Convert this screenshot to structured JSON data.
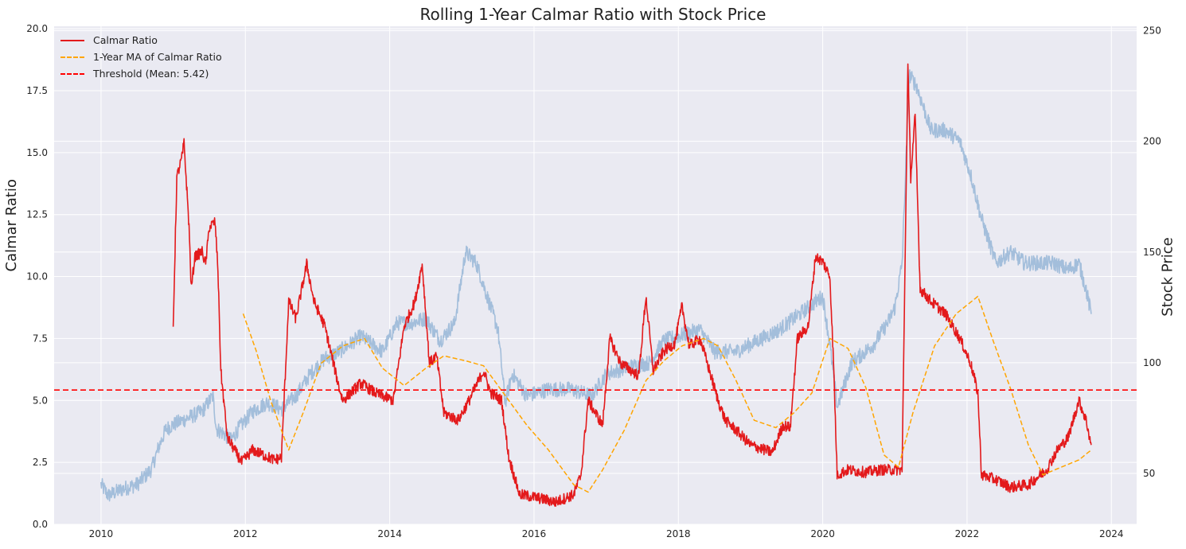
{
  "chart_data": {
    "type": "line",
    "title": "Rolling 1-Year Calmar Ratio with Stock Price",
    "xlabel": "",
    "ylabel": "Calmar Ratio",
    "y2label": "Stock Price",
    "xlim": [
      2009.35,
      2024.35
    ],
    "ylim": [
      0,
      20.1
    ],
    "y2lim": [
      27,
      252
    ],
    "x_ticks": [
      "2010",
      "2012",
      "2014",
      "2016",
      "2018",
      "2020",
      "2022",
      "2024"
    ],
    "x_tick_values": [
      2010,
      2012,
      2014,
      2016,
      2018,
      2020,
      2022,
      2024
    ],
    "y_ticks": [
      "0.0",
      "2.5",
      "5.0",
      "7.5",
      "10.0",
      "12.5",
      "15.0",
      "17.5",
      "20.0"
    ],
    "y_tick_values": [
      0,
      2.5,
      5,
      7.5,
      10,
      12.5,
      15,
      17.5,
      20
    ],
    "y2_ticks": [
      "50",
      "100",
      "150",
      "200",
      "250"
    ],
    "y2_tick_values": [
      50,
      100,
      150,
      200,
      250
    ],
    "grid": true,
    "legend_position": "top-left",
    "legend": [
      {
        "label": "Calmar Ratio",
        "style": "solid",
        "color": "#e31a1c"
      },
      {
        "label": "1-Year MA of Calmar Ratio",
        "style": "dashed",
        "color": "#ffa500"
      },
      {
        "label": "Threshold (Mean: 5.42)",
        "style": "dashed",
        "color": "#ff0000"
      }
    ],
    "threshold": 5.42,
    "series": [
      {
        "name": "Calmar Ratio",
        "axis": "left",
        "color": "#e31a1c",
        "x": [
          2011.0,
          2011.05,
          2011.12,
          2011.15,
          2011.22,
          2011.25,
          2011.3,
          2011.4,
          2011.45,
          2011.5,
          2011.58,
          2011.62,
          2011.66,
          2011.75,
          2011.85,
          2011.95,
          2012.1,
          2012.25,
          2012.4,
          2012.5,
          2012.6,
          2012.7,
          2012.85,
          2012.95,
          2013.1,
          2013.3,
          2013.35,
          2013.6,
          2013.8,
          2014.05,
          2014.2,
          2014.35,
          2014.45,
          2014.55,
          2014.65,
          2014.75,
          2014.95,
          2015.1,
          2015.3,
          2015.4,
          2015.55,
          2015.65,
          2015.8,
          2016.0,
          2016.3,
          2016.55,
          2016.65,
          2016.75,
          2016.95,
          2017.05,
          2017.2,
          2017.45,
          2017.55,
          2017.65,
          2017.8,
          2017.95,
          2018.05,
          2018.15,
          2018.3,
          2018.55,
          2018.65,
          2018.8,
          2019.0,
          2019.3,
          2019.45,
          2019.55,
          2019.65,
          2019.8,
          2019.9,
          2020.0,
          2020.1,
          2020.15,
          2020.2,
          2020.35,
          2020.6,
          2020.8,
          2021.1,
          2021.18,
          2021.22,
          2021.28,
          2021.35,
          2021.5,
          2021.7,
          2021.9,
          2022.05,
          2022.15,
          2022.2,
          2022.4,
          2022.6,
          2022.85,
          2023.1,
          2023.25,
          2023.4,
          2023.55,
          2023.65,
          2023.72
        ],
        "values": [
          8.0,
          14.0,
          14.8,
          15.4,
          12.0,
          9.5,
          10.8,
          11.0,
          10.5,
          12.0,
          12.2,
          10.3,
          6.2,
          3.5,
          3.0,
          2.5,
          3.0,
          2.8,
          2.6,
          2.7,
          9.0,
          8.3,
          10.5,
          9.0,
          8.0,
          5.5,
          5.0,
          5.7,
          5.3,
          5.0,
          8.0,
          9.0,
          10.5,
          6.5,
          6.8,
          4.5,
          4.2,
          5.0,
          6.2,
          5.3,
          5.0,
          2.7,
          1.2,
          1.1,
          0.9,
          1.2,
          2.0,
          5.0,
          4.0,
          7.5,
          6.5,
          6.0,
          9.2,
          6.2,
          7.0,
          7.3,
          8.8,
          7.2,
          7.5,
          5.0,
          4.2,
          3.8,
          3.2,
          2.9,
          4.0,
          3.9,
          7.5,
          8.0,
          10.8,
          10.6,
          10.0,
          6.5,
          2.0,
          2.2,
          2.1,
          2.2,
          2.2,
          18.5,
          14.0,
          16.5,
          9.5,
          9.0,
          8.5,
          7.5,
          6.5,
          5.3,
          2.0,
          1.8,
          1.5,
          1.6,
          2.2,
          3.0,
          3.5,
          5.0,
          4.2,
          3.2
        ]
      },
      {
        "name": "1-Year MA of Calmar Ratio",
        "axis": "left",
        "color": "#ffa500",
        "x": [
          2011.97,
          2012.15,
          2012.35,
          2012.6,
          2012.8,
          2013.05,
          2013.35,
          2013.65,
          2013.9,
          2014.2,
          2014.5,
          2014.75,
          2015.05,
          2015.3,
          2015.6,
          2015.9,
          2016.2,
          2016.55,
          2016.75,
          2016.95,
          2017.25,
          2017.55,
          2017.8,
          2018.05,
          2018.35,
          2018.55,
          2018.8,
          2019.05,
          2019.35,
          2019.6,
          2019.85,
          2020.1,
          2020.35,
          2020.6,
          2020.85,
          2021.05,
          2021.25,
          2021.55,
          2021.85,
          2022.15,
          2022.35,
          2022.6,
          2022.85,
          2023.05,
          2023.3,
          2023.55,
          2023.72
        ],
        "values": [
          8.5,
          7.0,
          5.0,
          3.0,
          4.5,
          6.5,
          7.2,
          7.5,
          6.3,
          5.6,
          6.3,
          6.8,
          6.6,
          6.4,
          5.2,
          4.0,
          3.0,
          1.6,
          1.3,
          2.2,
          3.8,
          5.8,
          6.6,
          7.2,
          7.5,
          7.2,
          5.8,
          4.2,
          3.9,
          4.5,
          5.3,
          7.5,
          7.1,
          5.5,
          2.8,
          2.3,
          4.5,
          7.2,
          8.5,
          9.2,
          7.5,
          5.5,
          3.2,
          2.0,
          2.3,
          2.6,
          3.0
        ]
      },
      {
        "name": "Stock Price",
        "axis": "right",
        "color": "#9fbcd9",
        "x": [
          2010.0,
          2010.1,
          2010.3,
          2010.5,
          2010.7,
          2010.8,
          2010.9,
          2011.0,
          2011.2,
          2011.4,
          2011.55,
          2011.6,
          2011.7,
          2011.8,
          2011.9,
          2012.1,
          2012.3,
          2012.5,
          2012.7,
          2012.9,
          2013.1,
          2013.3,
          2013.6,
          2013.9,
          2014.1,
          2014.3,
          2014.5,
          2014.7,
          2014.9,
          2015.05,
          2015.2,
          2015.35,
          2015.5,
          2015.6,
          2015.7,
          2015.9,
          2016.2,
          2016.5,
          2016.8,
          2017.0,
          2017.3,
          2017.6,
          2017.8,
          2018.0,
          2018.3,
          2018.5,
          2018.8,
          2019.1,
          2019.4,
          2019.6,
          2019.8,
          2020.0,
          2020.1,
          2020.2,
          2020.4,
          2020.7,
          2020.9,
          2021.0,
          2021.1,
          2021.2,
          2021.3,
          2021.5,
          2021.7,
          2021.9,
          2022.05,
          2022.2,
          2022.4,
          2022.6,
          2022.8,
          2023.0,
          2023.2,
          2023.4,
          2023.55,
          2023.65,
          2023.72
        ],
        "values": [
          45,
          40,
          43,
          45,
          52,
          62,
          70,
          72,
          75,
          78,
          85,
          70,
          68,
          65,
          70,
          78,
          82,
          79,
          85,
          95,
          102,
          105,
          112,
          105,
          118,
          118,
          120,
          110,
          118,
          150,
          145,
          130,
          115,
          82,
          95,
          85,
          88,
          88,
          85,
          95,
          98,
          100,
          110,
          112,
          115,
          105,
          105,
          110,
          115,
          120,
          125,
          130,
          108,
          80,
          100,
          108,
          118,
          125,
          145,
          230,
          225,
          205,
          205,
          200,
          185,
          165,
          145,
          150,
          145,
          145,
          145,
          142,
          145,
          133,
          122
        ]
      }
    ]
  }
}
